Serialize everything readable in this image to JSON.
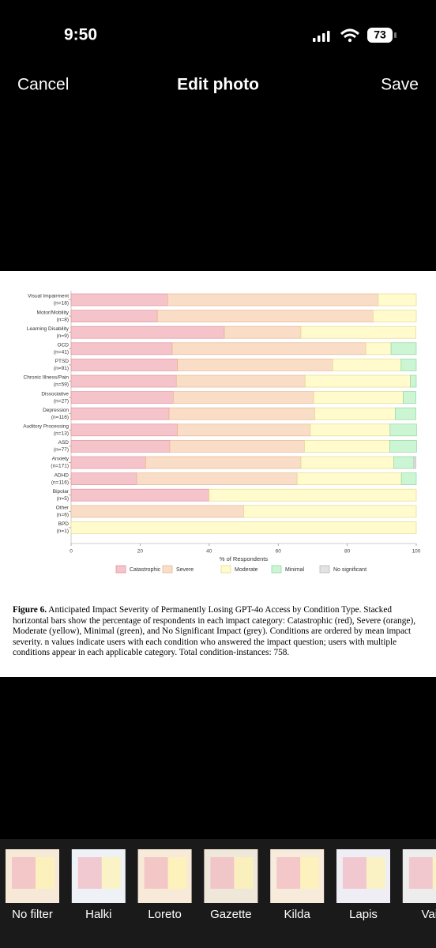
{
  "status": {
    "time": "9:50",
    "battery": "73"
  },
  "header": {
    "cancel": "Cancel",
    "title": "Edit photo",
    "save": "Save"
  },
  "chart_data": {
    "type": "stacked_bar_horizontal",
    "categories": [
      "Visual Impairment",
      "Motor/Mobility",
      "Learning Disability",
      "OCD",
      "PTSD",
      "Chronic Illness/Pain",
      "Dissociative",
      "Depression",
      "Auditory Processing",
      "ASD",
      "Anxiety",
      "ADHD",
      "Bipolar",
      "Other",
      "BPD"
    ],
    "category_counts": [
      "(n=18)",
      "(n=8)",
      "(n=9)",
      "(n=41)",
      "(n=91)",
      "(n=59)",
      "(n=27)",
      "(n=116)",
      "(n=13)",
      "(n=77)",
      "(n=171)",
      "(n=116)",
      "(n=5)",
      "(n=6)",
      "(n=1)"
    ],
    "series": [
      {
        "name": "Catastrophic",
        "color": "#f5c4cb",
        "stroke": "#e3929c",
        "values": [
          28,
          25,
          44.4,
          29.3,
          30.8,
          30.5,
          29.6,
          28.4,
          30.8,
          28.6,
          21.6,
          19,
          40,
          0,
          0
        ]
      },
      {
        "name": "Severe",
        "color": "#f9ddc6",
        "stroke": "#e7b893",
        "values": [
          61,
          62.5,
          22.2,
          56.1,
          45,
          37.3,
          40.7,
          42.2,
          38.5,
          39,
          45,
          46.5,
          0,
          50,
          0
        ]
      },
      {
        "name": "Moderate",
        "color": "#fffbcc",
        "stroke": "#e5da8e",
        "values": [
          11,
          12.5,
          33.3,
          7.3,
          19.8,
          30.5,
          25.9,
          23.3,
          23.1,
          24.7,
          26.9,
          30.2,
          60,
          50,
          100
        ]
      },
      {
        "name": "Minimal",
        "color": "#ccf5d4",
        "stroke": "#92d6a3",
        "values": [
          0,
          0,
          0,
          7.3,
          4.4,
          1.7,
          3.7,
          6,
          7.7,
          7.8,
          5.8,
          4.3,
          0,
          0,
          0
        ]
      },
      {
        "name": "No significant",
        "color": "#e2e2e2",
        "stroke": "#b8b8b8",
        "values": [
          0,
          0,
          0,
          0,
          0,
          0,
          0,
          0,
          0,
          0,
          0.6,
          0,
          0,
          0,
          0
        ]
      }
    ],
    "xlabel": "% of Respondents",
    "xlim": [
      0,
      100
    ],
    "xticks": [
      0,
      20,
      40,
      60,
      80,
      100
    ]
  },
  "caption": {
    "label": "Figure 6.",
    "text": "Anticipated Impact Severity of Permanently Losing GPT-4o Access by Condition Type. Stacked horizontal bars show the percentage of respondents in each impact category: Catastrophic (red), Severe (orange), Moderate (yellow), Minimal (green), and No Significant Impact (grey). Conditions are ordered by mean impact severity. n values indicate users with each condition who answered the impact question; users with multiple conditions appear in each applicable category. Total condition-instances: 758."
  },
  "filters": [
    "No filter",
    "Halki",
    "Loreto",
    "Gazette",
    "Kilda",
    "Lapis",
    "Vai"
  ]
}
